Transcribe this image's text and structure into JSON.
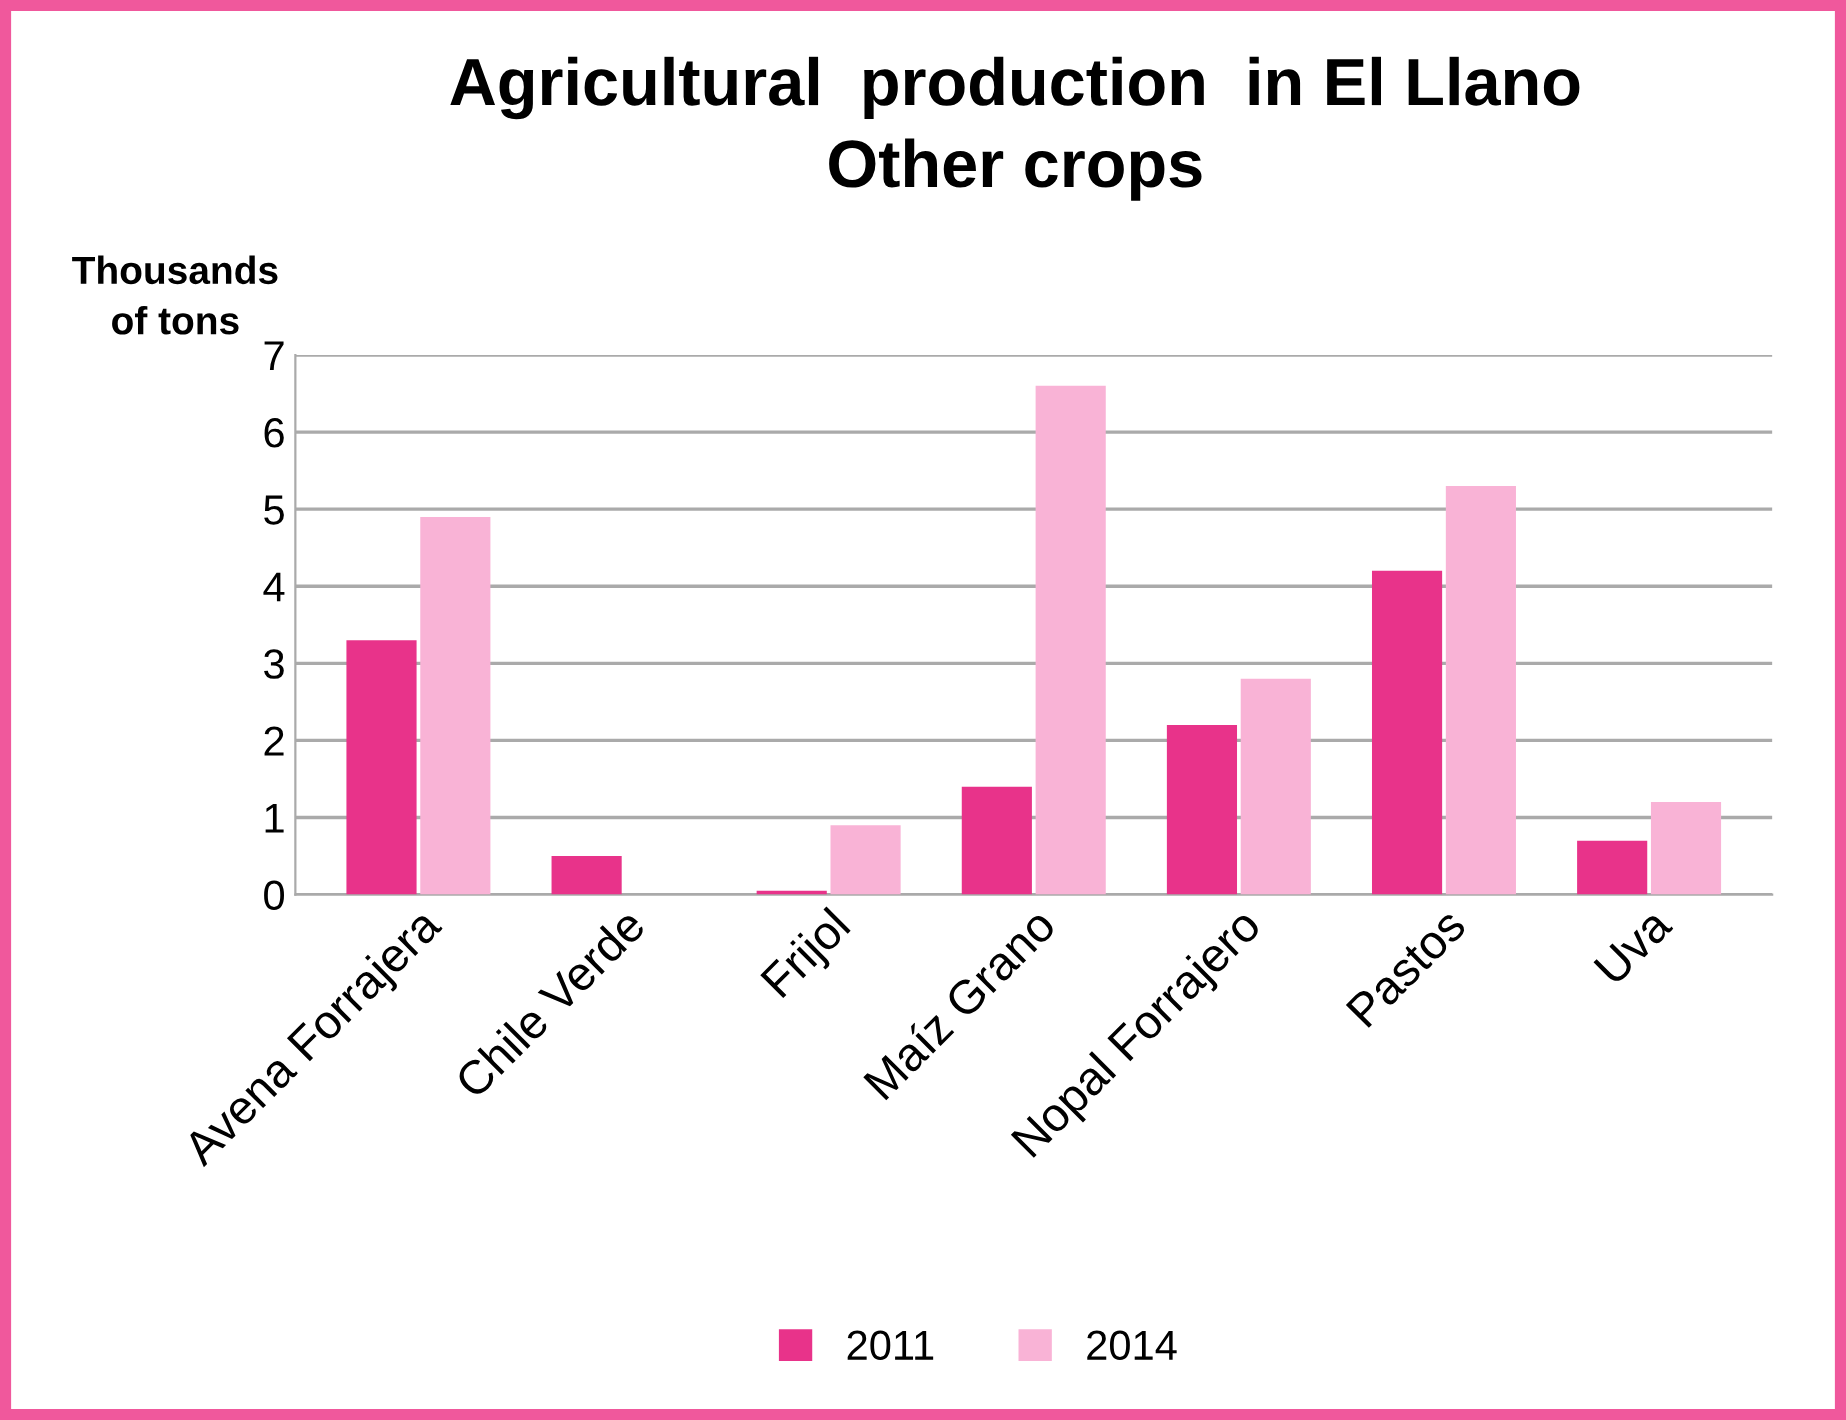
{
  "chart_data": {
    "type": "bar",
    "title": "Agricultural  production  in El Llano\nOther crops",
    "ylabel": "Thousands\nof tons",
    "categories": [
      "Avena Forrajera",
      "Chile Verde",
      "Frijol",
      "Maíz Grano",
      "Nopal Forrajero",
      "Pastos",
      "Uva"
    ],
    "series": [
      {
        "name": "2011",
        "color": "#e8338a",
        "values": [
          3.3,
          0.5,
          0.05,
          1.4,
          2.2,
          4.2,
          0.7
        ]
      },
      {
        "name": "2014",
        "color": "#f9b3d6",
        "values": [
          4.9,
          0,
          0.9,
          6.6,
          2.8,
          5.3,
          1.2
        ]
      }
    ],
    "ylim": [
      0,
      7
    ],
    "yticks": [
      0,
      1,
      2,
      3,
      4,
      5,
      6,
      7
    ],
    "grid": "y",
    "legend": "bottom"
  }
}
